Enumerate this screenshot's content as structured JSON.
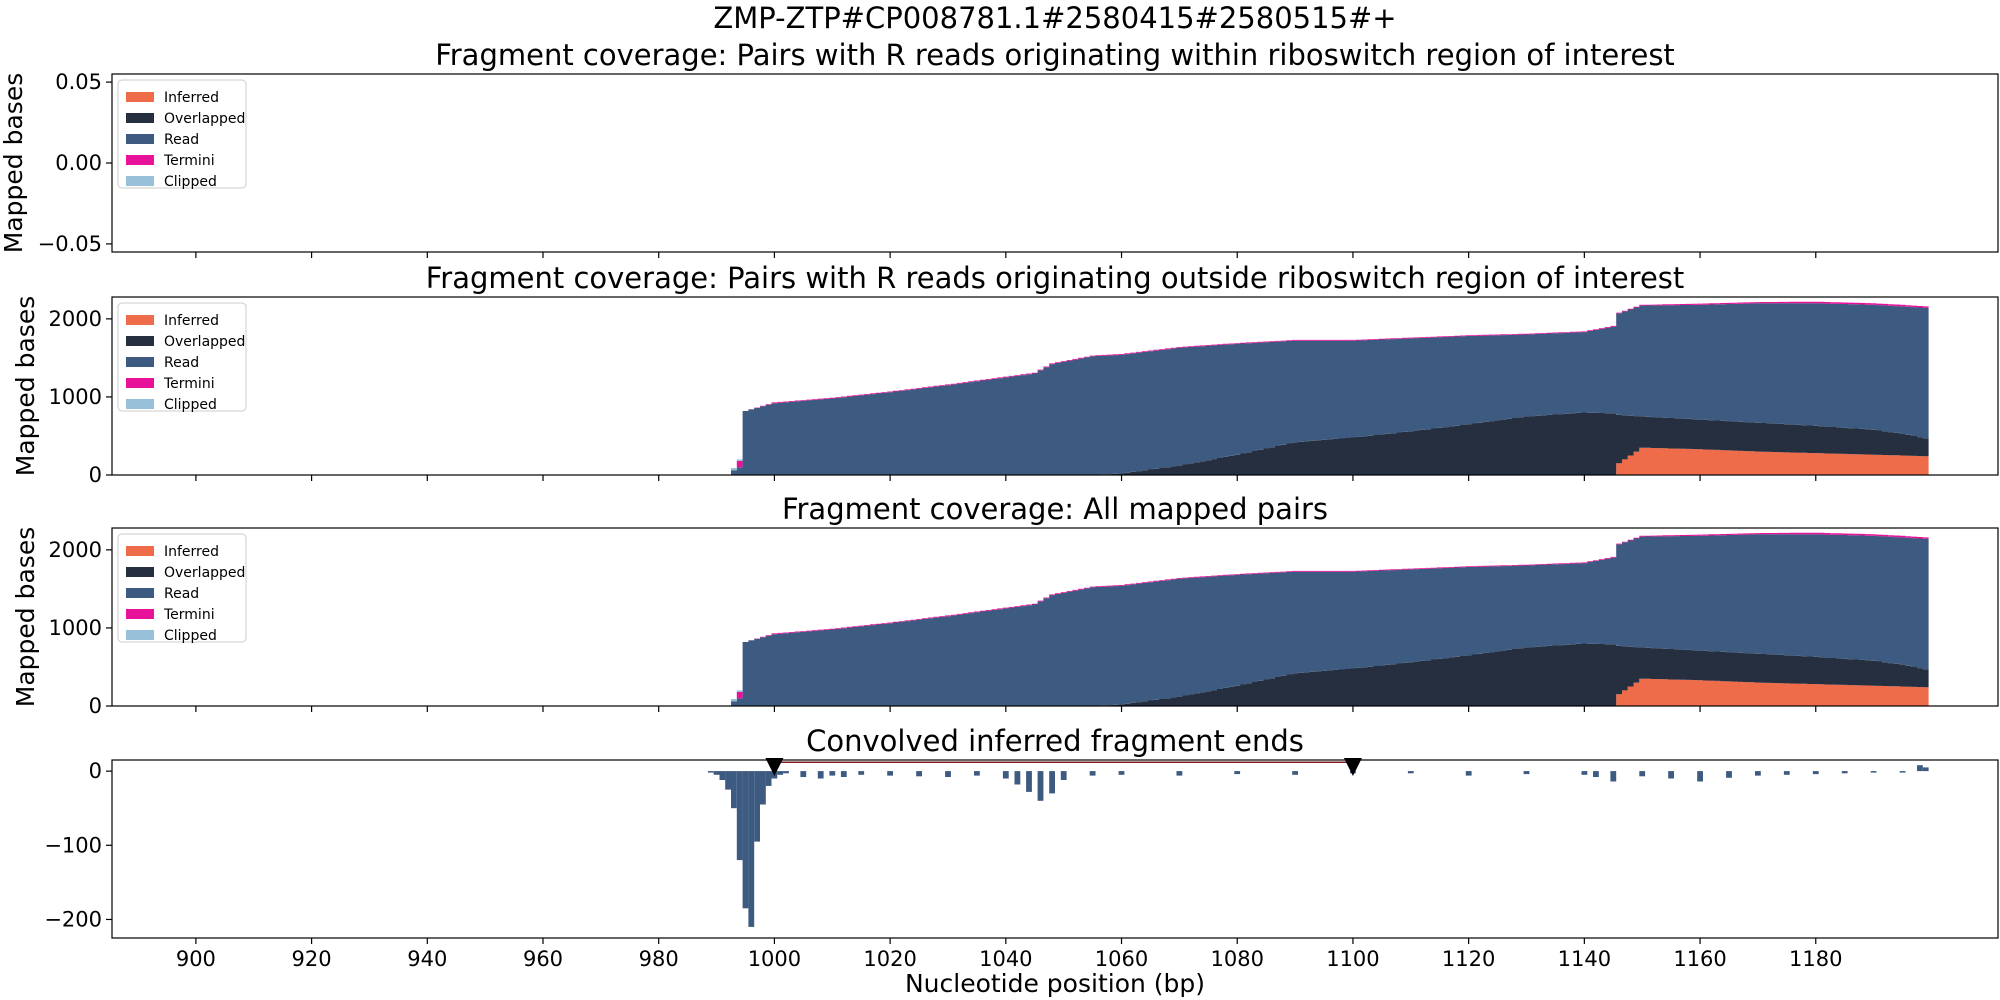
{
  "figure": {
    "suptitle": "ZMP-ZTP#CP008781.1#2580415#2580515#+",
    "xlabel": "Nucleotide position (bp)",
    "x_ticks": [
      900,
      920,
      940,
      960,
      980,
      1000,
      1020,
      1040,
      1060,
      1080,
      1100,
      1120,
      1140,
      1160,
      1180
    ],
    "xlim": [
      885.5,
      1211.5
    ]
  },
  "colors": {
    "Inferred": "#ef6c4a",
    "Overlapped": "#252f40",
    "Read": "#3d5a80",
    "Termini": "#e8129a",
    "Clipped": "#98c1d9",
    "Convolved": "#3d5a80",
    "Window": "#7f1f1f"
  },
  "chart_data": [
    {
      "type": "area",
      "title": "Fragment coverage: Pairs with R reads originating within riboswitch region of interest",
      "ylabel": "Mapped bases",
      "ylim": [
        -0.055,
        0.055
      ],
      "y_ticks": [
        -0.05,
        0.0,
        0.05
      ],
      "y_tick_labels": [
        "−0.05",
        "0.00",
        "0.05"
      ],
      "legend": [
        "Inferred",
        "Overlapped",
        "Read",
        "Termini",
        "Clipped"
      ],
      "legend_position": "top-left",
      "series": []
    },
    {
      "type": "area",
      "stacked": true,
      "title": "Fragment coverage: Pairs with R reads originating outside riboswitch region of interest",
      "ylabel": "Mapped bases",
      "ylim": [
        0,
        2280
      ],
      "y_ticks": [
        0,
        1000,
        2000
      ],
      "y_tick_labels": [
        "0",
        "1000",
        "2000"
      ],
      "legend": [
        "Inferred",
        "Overlapped",
        "Read",
        "Termini",
        "Clipped"
      ],
      "legend_position": "top-left",
      "x": [
        993,
        994,
        995,
        1000,
        1010,
        1020,
        1030,
        1040,
        1045,
        1048,
        1055,
        1060,
        1070,
        1080,
        1090,
        1100,
        1110,
        1120,
        1130,
        1140,
        1145,
        1146,
        1150,
        1160,
        1170,
        1180,
        1190,
        1195,
        1199
      ],
      "series": [
        {
          "name": "Inferred",
          "values": [
            0,
            0,
            0,
            0,
            0,
            0,
            0,
            0,
            0,
            0,
            0,
            0,
            0,
            0,
            0,
            0,
            0,
            0,
            0,
            0,
            0,
            150,
            350,
            330,
            300,
            280,
            260,
            250,
            240
          ]
        },
        {
          "name": "Overlapped",
          "values": [
            0,
            0,
            0,
            0,
            0,
            0,
            0,
            0,
            0,
            0,
            0,
            20,
            120,
            260,
            420,
            480,
            560,
            650,
            750,
            800,
            790,
            620,
            400,
            380,
            370,
            350,
            320,
            280,
            230
          ]
        },
        {
          "name": "Read",
          "values": [
            60,
            100,
            820,
            920,
            980,
            1060,
            1150,
            1250,
            1300,
            1420,
            1520,
            1520,
            1510,
            1420,
            1300,
            1240,
            1190,
            1130,
            1050,
            1030,
            1110,
            1300,
            1420,
            1470,
            1530,
            1570,
            1600,
            1630,
            1670
          ]
        },
        {
          "name": "Termini",
          "values": [
            0,
            80,
            0,
            10,
            10,
            10,
            10,
            10,
            10,
            10,
            10,
            10,
            10,
            10,
            10,
            10,
            10,
            10,
            10,
            10,
            10,
            10,
            10,
            15,
            15,
            20,
            20,
            20,
            20
          ]
        },
        {
          "name": "Clipped",
          "values": [
            30,
            20,
            0,
            0,
            0,
            0,
            0,
            0,
            0,
            0,
            0,
            0,
            0,
            0,
            0,
            0,
            0,
            0,
            0,
            0,
            0,
            0,
            0,
            0,
            0,
            0,
            0,
            0,
            0
          ]
        }
      ]
    },
    {
      "type": "area",
      "stacked": true,
      "title": "Fragment coverage: All mapped pairs",
      "ylabel": "Mapped bases",
      "ylim": [
        0,
        2280
      ],
      "y_ticks": [
        0,
        1000,
        2000
      ],
      "y_tick_labels": [
        "0",
        "1000",
        "2000"
      ],
      "legend": [
        "Inferred",
        "Overlapped",
        "Read",
        "Termini",
        "Clipped"
      ],
      "legend_position": "top-left",
      "x": [
        993,
        994,
        995,
        1000,
        1010,
        1020,
        1030,
        1040,
        1045,
        1048,
        1055,
        1060,
        1070,
        1080,
        1090,
        1100,
        1110,
        1120,
        1130,
        1140,
        1145,
        1146,
        1150,
        1160,
        1170,
        1180,
        1190,
        1195,
        1199
      ],
      "series": [
        {
          "name": "Inferred",
          "values": [
            0,
            0,
            0,
            0,
            0,
            0,
            0,
            0,
            0,
            0,
            0,
            0,
            0,
            0,
            0,
            0,
            0,
            0,
            0,
            0,
            0,
            150,
            350,
            330,
            300,
            280,
            260,
            250,
            240
          ]
        },
        {
          "name": "Overlapped",
          "values": [
            0,
            0,
            0,
            0,
            0,
            0,
            0,
            0,
            0,
            0,
            0,
            20,
            120,
            260,
            420,
            480,
            560,
            650,
            750,
            800,
            790,
            620,
            400,
            380,
            370,
            350,
            320,
            280,
            230
          ]
        },
        {
          "name": "Read",
          "values": [
            60,
            100,
            820,
            920,
            980,
            1060,
            1150,
            1250,
            1300,
            1420,
            1520,
            1520,
            1510,
            1420,
            1300,
            1240,
            1190,
            1130,
            1050,
            1030,
            1110,
            1300,
            1420,
            1470,
            1530,
            1570,
            1600,
            1630,
            1670
          ]
        },
        {
          "name": "Termini",
          "values": [
            0,
            80,
            0,
            10,
            10,
            10,
            10,
            10,
            10,
            10,
            10,
            10,
            10,
            10,
            10,
            10,
            10,
            10,
            10,
            10,
            10,
            10,
            10,
            15,
            15,
            20,
            20,
            20,
            20
          ]
        },
        {
          "name": "Clipped",
          "values": [
            30,
            20,
            0,
            0,
            0,
            0,
            0,
            0,
            0,
            0,
            0,
            0,
            0,
            0,
            0,
            0,
            0,
            0,
            0,
            0,
            0,
            0,
            0,
            0,
            0,
            0,
            0,
            0,
            0
          ]
        }
      ]
    },
    {
      "type": "bar",
      "title": "Convolved inferred fragment ends",
      "ylim": [
        -225,
        15
      ],
      "y_ticks": [
        0,
        -100,
        -200
      ],
      "y_tick_labels": [
        "0",
        "−100",
        "−200"
      ],
      "window": [
        1000,
        1100
      ],
      "markers": [
        1000,
        1100
      ],
      "x": [
        989,
        990,
        991,
        992,
        993,
        994,
        995,
        996,
        997,
        998,
        999,
        1000,
        1001,
        1002,
        1005,
        1008,
        1010,
        1012,
        1015,
        1020,
        1025,
        1030,
        1035,
        1040,
        1042,
        1044,
        1046,
        1048,
        1050,
        1055,
        1060,
        1070,
        1080,
        1090,
        1100,
        1110,
        1120,
        1130,
        1140,
        1142,
        1145,
        1150,
        1155,
        1160,
        1165,
        1170,
        1175,
        1180,
        1185,
        1190,
        1195,
        1198,
        1199
      ],
      "values": [
        -2,
        -5,
        -12,
        -25,
        -50,
        -120,
        -185,
        -210,
        -95,
        -45,
        -20,
        -10,
        -5,
        -3,
        -8,
        -10,
        -6,
        -8,
        -5,
        -6,
        -7,
        -8,
        -6,
        -10,
        -18,
        -28,
        -40,
        -30,
        -12,
        -6,
        -5,
        -6,
        -4,
        -5,
        -3,
        -3,
        -6,
        -4,
        -5,
        -8,
        -14,
        -7,
        -10,
        -14,
        -9,
        -6,
        -5,
        -4,
        -3,
        -2,
        -2,
        8,
        5
      ]
    }
  ]
}
